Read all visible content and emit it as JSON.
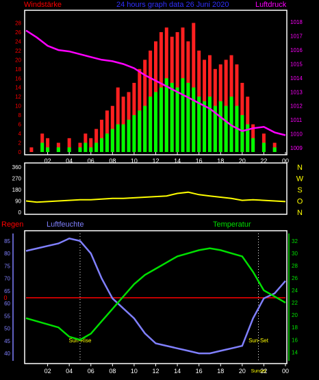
{
  "header": {
    "left_label": "Windstärke",
    "title": "24 hours graph data  26 Juni 2020",
    "right_label": "Luftdruck"
  },
  "x_ticks": [
    "02",
    "04",
    "06",
    "08",
    "10",
    "12",
    "14",
    "16",
    "18",
    "20",
    "22",
    "00"
  ],
  "colors": {
    "background": "#000000",
    "frame": "#ffffff",
    "wind_max": "#ff2020",
    "wind_avg": "#00ff00",
    "pressure": "#ff00ff",
    "direction": "#ffff00",
    "rain": "#ff0000",
    "humidity": "#8080ff",
    "temperature": "#00e000",
    "axis_left": "#ff0000",
    "axis_right": "#ff00ff",
    "compass": "#ffff00",
    "title": "#3030ff"
  },
  "chart_data": [
    {
      "type": "bar",
      "title": "24 hours graph data  26 Juni 2020",
      "x_unit": "hour of day",
      "x_range": [
        0,
        24
      ],
      "ylabel": "Windstärke",
      "ylim": [
        0,
        30
      ],
      "y_ticks": [
        0,
        2,
        4,
        6,
        8,
        10,
        12,
        14,
        16,
        18,
        20,
        22,
        24,
        26,
        28
      ],
      "series": [
        {
          "name": "wind_max",
          "color": "#ff2020",
          "x": [
            0.5,
            1.5,
            2.0,
            3.0,
            4.0,
            5.0,
            5.5,
            6.0,
            6.5,
            7.0,
            7.5,
            8.0,
            8.5,
            9.0,
            9.5,
            10.0,
            10.5,
            11.0,
            11.5,
            12.0,
            12.5,
            13.0,
            13.5,
            14.0,
            14.5,
            15.0,
            15.5,
            16.0,
            16.5,
            17.0,
            17.5,
            18.0,
            18.5,
            19.0,
            19.5,
            20.0,
            20.5,
            21.0,
            22.0,
            23.0
          ],
          "values": [
            1,
            4,
            3,
            2,
            3,
            2,
            4,
            3,
            5,
            7,
            9,
            10,
            14,
            12,
            13,
            15,
            18,
            20,
            22,
            24,
            26,
            27,
            25,
            26,
            27,
            24,
            28,
            22,
            20,
            21,
            18,
            19,
            20,
            21,
            19,
            15,
            12,
            6,
            4,
            2
          ]
        },
        {
          "name": "wind_avg",
          "color": "#00ff00",
          "x": [
            0.5,
            1.5,
            2.0,
            3.0,
            4.0,
            5.0,
            5.5,
            6.0,
            6.5,
            7.0,
            7.5,
            8.0,
            8.5,
            9.0,
            9.5,
            10.0,
            10.5,
            11.0,
            11.5,
            12.0,
            12.5,
            13.0,
            13.5,
            14.0,
            14.5,
            15.0,
            15.5,
            16.0,
            16.5,
            17.0,
            17.5,
            18.0,
            18.5,
            19.0,
            19.5,
            20.0,
            20.5,
            21.0,
            22.0,
            23.0
          ],
          "values": [
            0,
            2,
            1,
            1,
            1,
            1,
            2,
            1,
            2,
            3,
            4,
            5,
            6,
            6,
            7,
            8,
            9,
            10,
            12,
            13,
            14,
            16,
            15,
            14,
            16,
            15,
            14,
            12,
            11,
            12,
            10,
            11,
            10,
            12,
            10,
            8,
            6,
            3,
            2,
            1
          ]
        }
      ]
    },
    {
      "type": "line",
      "ylabel": "Luftdruck",
      "ylim": [
        1008.7,
        1018.6
      ],
      "y_ticks": [
        1009,
        1010,
        1011,
        1012,
        1013,
        1014,
        1015,
        1016,
        1017,
        1018
      ],
      "series": [
        {
          "name": "Luftdruck",
          "color": "#ff00ff",
          "x": [
            0,
            1,
            2,
            3,
            4,
            5,
            6,
            7,
            8,
            9,
            10,
            11,
            12,
            13,
            14,
            15,
            16,
            17,
            18,
            19,
            20,
            21,
            22,
            23,
            24
          ],
          "values": [
            1017.4,
            1016.9,
            1016.3,
            1016.0,
            1015.9,
            1015.7,
            1015.5,
            1015.3,
            1015.2,
            1015.0,
            1014.7,
            1014.2,
            1013.8,
            1013.4,
            1013.0,
            1012.6,
            1012.2,
            1011.8,
            1011.2,
            1010.6,
            1010.2,
            1010.4,
            1010.5,
            1010.1,
            1009.9
          ]
        }
      ]
    },
    {
      "type": "line",
      "ylim": [
        0,
        360
      ],
      "y_ticks": [
        0,
        90,
        180,
        270,
        360
      ],
      "right_labels": [
        "N",
        "W",
        "S",
        "O",
        "N"
      ],
      "series": [
        {
          "name": "wind_direction",
          "color": "#ffff00",
          "x": [
            0,
            1,
            2,
            3,
            4,
            5,
            6,
            7,
            8,
            9,
            10,
            11,
            12,
            13,
            14,
            15,
            16,
            17,
            18,
            19,
            20,
            21,
            22,
            23,
            24
          ],
          "values": [
            90,
            80,
            85,
            90,
            95,
            100,
            100,
            105,
            110,
            110,
            115,
            120,
            125,
            130,
            150,
            160,
            140,
            130,
            120,
            110,
            95,
            100,
            95,
            90,
            85
          ]
        }
      ]
    },
    {
      "type": "line",
      "left_label": "Regen",
      "series_labels": {
        "humidity": "Luftfeuchte",
        "temperature": "Temperatur"
      },
      "ylim_humidity": [
        37,
        88
      ],
      "y_ticks_humidity": [
        40,
        45,
        50,
        55,
        60,
        65,
        70,
        75,
        80,
        85
      ],
      "ylim_temperature": [
        12.6,
        33.2
      ],
      "y_ticks_temperature": [
        14,
        16,
        18,
        20,
        22,
        24,
        26,
        28,
        30,
        32
      ],
      "rain_value_label": "0",
      "rain_value": 0,
      "series": [
        {
          "name": "Luftfeuchte",
          "color": "#8080ff",
          "x": [
            0,
            1,
            2,
            3,
            4,
            5,
            6,
            7,
            8,
            9,
            10,
            11,
            12,
            13,
            14,
            15,
            16,
            17,
            18,
            19,
            20,
            21,
            22,
            23,
            24
          ],
          "values": [
            81,
            82,
            83,
            84,
            86,
            85,
            80,
            70,
            62,
            58,
            54,
            48,
            44,
            43,
            42,
            41,
            40,
            40,
            41,
            42,
            43,
            54,
            62,
            64,
            69
          ]
        },
        {
          "name": "Temperatur",
          "color": "#00e000",
          "x": [
            0,
            1,
            2,
            3,
            4,
            5,
            6,
            7,
            8,
            9,
            10,
            11,
            12,
            13,
            14,
            15,
            16,
            17,
            18,
            19,
            20,
            21,
            22,
            23,
            24
          ],
          "values": [
            19.5,
            19.0,
            18.5,
            18.0,
            16.5,
            16.0,
            17.0,
            19.0,
            21.0,
            23.0,
            25.0,
            26.5,
            27.5,
            28.5,
            29.5,
            30.0,
            30.5,
            30.8,
            30.5,
            30.0,
            29.5,
            27.0,
            24.0,
            23.0,
            22.0
          ]
        }
      ],
      "annotations": [
        {
          "label": "Sun-Rise",
          "x": 5.0
        },
        {
          "label": "Sun-Set",
          "x": 21.5
        }
      ],
      "x_extra_label": {
        "label": "Sunset",
        "x": 21.5
      }
    }
  ]
}
